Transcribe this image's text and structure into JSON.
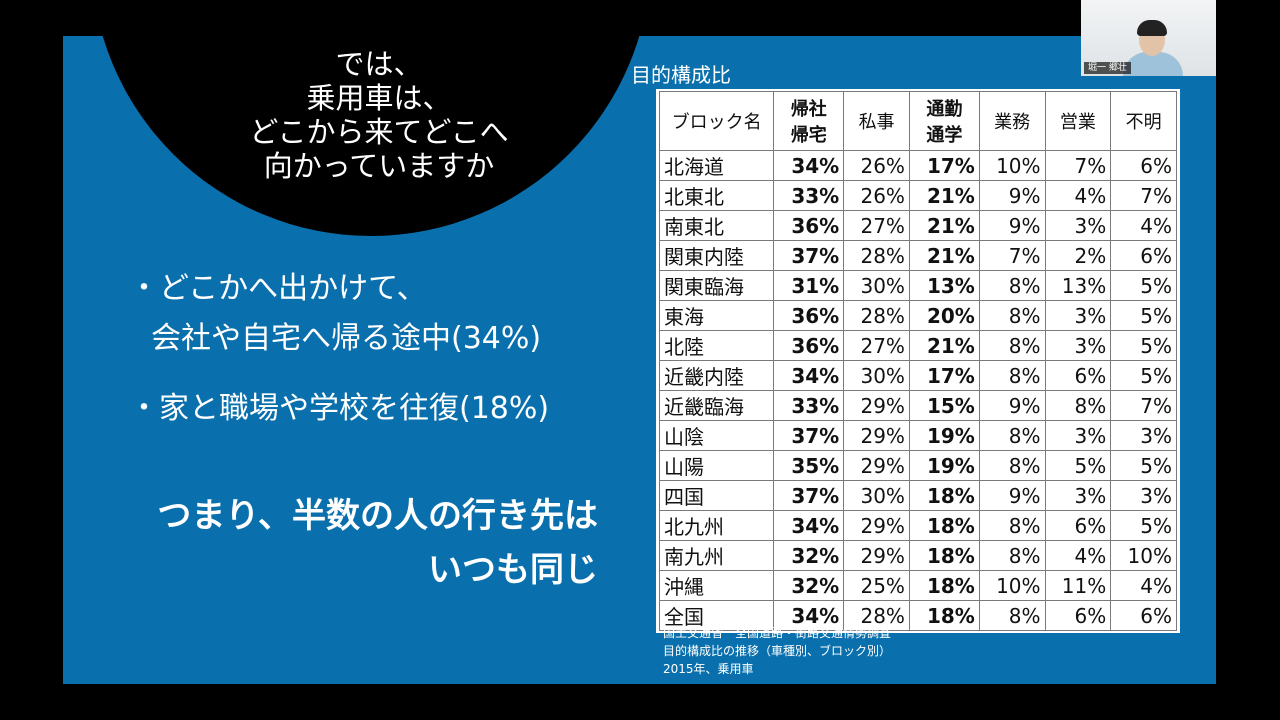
{
  "slide": {
    "question_lines": [
      "では、",
      "乗用車は、",
      "どこから来てどこへ",
      "向かっていますか"
    ],
    "bullets": [
      {
        "line1": "・どこかへ出かけて、",
        "line2": "会社や自宅へ帰る途中(34%)"
      },
      {
        "line1": "・家と職場や学校を往復(18%)"
      }
    ],
    "conclusion_lines": [
      "つまり、半数の人の行き先は",
      "いつも同じ"
    ],
    "table_title": "目的構成比",
    "table": {
      "headers": [
        "ブロック名",
        "帰社\n帰宅",
        "私事",
        "通勤\n通学",
        "業務",
        "営業",
        "不明"
      ],
      "bold_columns": [
        1,
        3
      ],
      "rows": [
        [
          "北海道",
          "34%",
          "26%",
          "17%",
          "10%",
          "7%",
          "6%"
        ],
        [
          "北東北",
          "33%",
          "26%",
          "21%",
          "9%",
          "4%",
          "7%"
        ],
        [
          "南東北",
          "36%",
          "27%",
          "21%",
          "9%",
          "3%",
          "4%"
        ],
        [
          "関東内陸",
          "37%",
          "28%",
          "21%",
          "7%",
          "2%",
          "6%"
        ],
        [
          "関東臨海",
          "31%",
          "30%",
          "13%",
          "8%",
          "13%",
          "5%"
        ],
        [
          "東海",
          "36%",
          "28%",
          "20%",
          "8%",
          "3%",
          "5%"
        ],
        [
          "北陸",
          "36%",
          "27%",
          "21%",
          "8%",
          "3%",
          "5%"
        ],
        [
          "近畿内陸",
          "34%",
          "30%",
          "17%",
          "8%",
          "6%",
          "5%"
        ],
        [
          "近畿臨海",
          "33%",
          "29%",
          "15%",
          "9%",
          "8%",
          "7%"
        ],
        [
          "山陰",
          "37%",
          "29%",
          "19%",
          "8%",
          "3%",
          "3%"
        ],
        [
          "山陽",
          "35%",
          "29%",
          "19%",
          "8%",
          "5%",
          "5%"
        ],
        [
          "四国",
          "37%",
          "30%",
          "18%",
          "9%",
          "3%",
          "3%"
        ],
        [
          "北九州",
          "34%",
          "29%",
          "18%",
          "8%",
          "6%",
          "5%"
        ],
        [
          "南九州",
          "32%",
          "29%",
          "18%",
          "8%",
          "4%",
          "10%"
        ],
        [
          "沖縄",
          "32%",
          "25%",
          "18%",
          "10%",
          "11%",
          "4%"
        ],
        [
          "全国",
          "34%",
          "28%",
          "18%",
          "8%",
          "6%",
          "6%"
        ]
      ]
    },
    "source_lines": [
      "国土交通省　全国道路・街路交通情勢調査",
      "目的構成比の推移（車種別、ブロック別）",
      "2015年、乗用車"
    ]
  },
  "webcam": {
    "participant_name": "堀一 郷壮"
  },
  "colors": {
    "slide_background": "#0a70ad",
    "circle": "#000000",
    "text": "#ffffff"
  }
}
